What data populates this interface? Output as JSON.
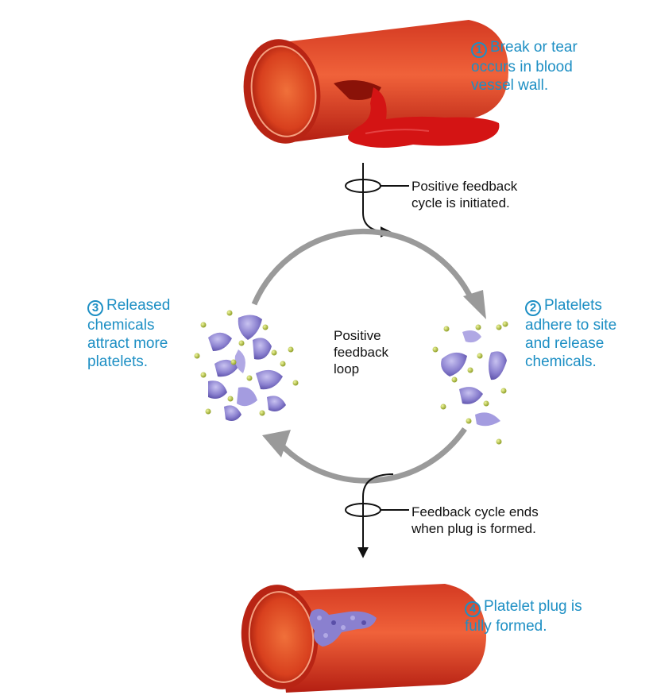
{
  "steps": [
    {
      "number": "1",
      "lines": [
        "Break or tear",
        "occurs in blood",
        "vessel wall."
      ]
    },
    {
      "number": "2",
      "lines": [
        "Platelets",
        "adhere to site",
        "and release",
        "chemicals."
      ]
    },
    {
      "number": "3",
      "lines": [
        "Released",
        "chemicals",
        "attract more",
        "platelets."
      ]
    },
    {
      "number": "4",
      "lines": [
        "Platelet plug is",
        "fully formed."
      ]
    }
  ],
  "notes": {
    "initiated": [
      "Positive feedback",
      "cycle is initiated."
    ],
    "loop": [
      "Positive",
      "feedback",
      "loop"
    ],
    "ends": [
      "Feedback cycle ends",
      "when plug is formed."
    ]
  },
  "colors": {
    "step_text": "#1d8fc4",
    "vessel_outer": "#c8261a",
    "vessel_inner": "#e84a2c",
    "blood": "#d41414",
    "platelet": "#8a80cf",
    "granule": "#b6c94a",
    "loop_arrow": "#9a9a9a"
  }
}
